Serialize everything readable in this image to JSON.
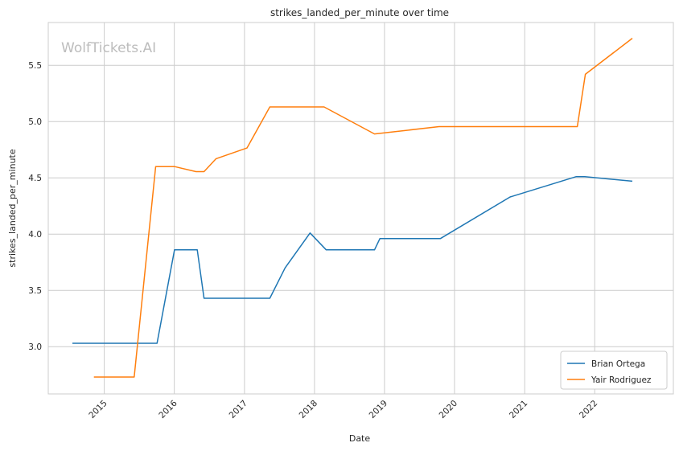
{
  "watermark": "WolfTickets.AI",
  "chart_data": {
    "type": "line",
    "title": "strikes_landed_per_minute over time",
    "xlabel": "Date",
    "ylabel": "strikes_landed_per_minute",
    "x_ticks": [
      "2015",
      "2016",
      "2017",
      "2018",
      "2019",
      "2020",
      "2021",
      "2022"
    ],
    "y_ticks": [
      "3.0",
      "3.5",
      "4.0",
      "4.5",
      "5.0",
      "5.5"
    ],
    "xlim": [
      "2014-03-15",
      "2023-02-15"
    ],
    "ylim": [
      2.58,
      5.88
    ],
    "grid": true,
    "legend_position": "bottom-right",
    "series": [
      {
        "name": "Brian Ortega",
        "color": "#1f77b4",
        "points": [
          [
            "2014-07-19",
            3.03
          ],
          [
            "2015-10-03",
            3.03
          ],
          [
            "2016-01-02",
            3.86
          ],
          [
            "2016-04-30",
            3.86
          ],
          [
            "2016-06-04",
            3.43
          ],
          [
            "2017-05-13",
            3.43
          ],
          [
            "2017-08-01",
            3.7
          ],
          [
            "2017-12-09",
            4.01
          ],
          [
            "2018-03-03",
            3.86
          ],
          [
            "2018-11-10",
            3.86
          ],
          [
            "2018-12-08",
            3.96
          ],
          [
            "2019-10-19",
            3.96
          ],
          [
            "2020-10-17",
            4.33
          ],
          [
            "2021-09-25",
            4.51
          ],
          [
            "2021-11-10",
            4.51
          ],
          [
            "2022-07-16",
            4.47
          ]
        ]
      },
      {
        "name": "Yair Rodriguez",
        "color": "#ff7f0e",
        "points": [
          [
            "2014-11-08",
            2.73
          ],
          [
            "2015-06-06",
            2.73
          ],
          [
            "2015-09-26",
            4.6
          ],
          [
            "2016-01-02",
            4.6
          ],
          [
            "2016-04-23",
            4.555
          ],
          [
            "2016-06-04",
            4.555
          ],
          [
            "2016-08-06",
            4.67
          ],
          [
            "2017-01-14",
            4.765
          ],
          [
            "2017-05-13",
            5.13
          ],
          [
            "2018-02-20",
            5.13
          ],
          [
            "2018-11-10",
            4.89
          ],
          [
            "2018-12-08",
            4.895
          ],
          [
            "2019-10-12",
            4.955
          ],
          [
            "2021-10-02",
            4.955
          ],
          [
            "2021-11-13",
            5.42
          ],
          [
            "2022-07-16",
            5.74
          ]
        ]
      }
    ]
  }
}
